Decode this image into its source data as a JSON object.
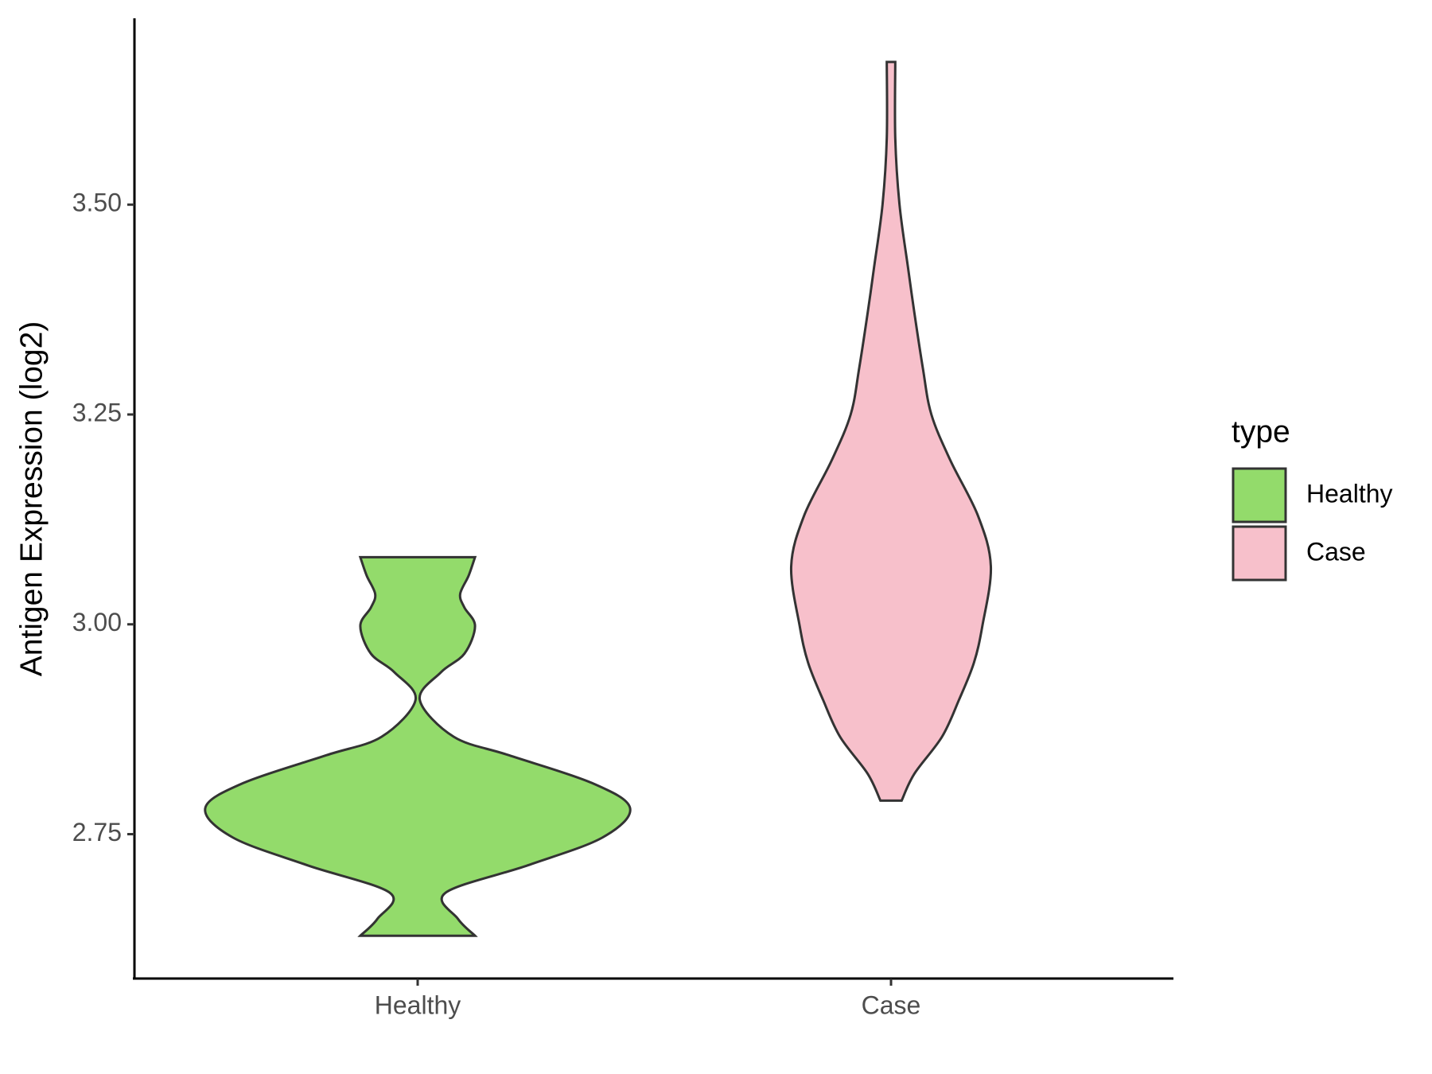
{
  "chart_data": {
    "type": "violin",
    "y_label": "Antigen Expression (log2)",
    "categories": [
      "Healthy",
      "Case"
    ],
    "ylim": [
      2.578,
      3.722
    ],
    "yticks": [
      2.75,
      {
        "value": 3.0,
        "label": "3.00"
      },
      3.25,
      {
        "value": 3.5,
        "label": "3.50"
      }
    ],
    "legend_title": "type",
    "legend_position": "right",
    "series": [
      {
        "name": "Healthy",
        "color": "#93db6b",
        "y": [
          2.629,
          2.649,
          2.68,
          2.713,
          2.746,
          2.781,
          2.811,
          2.844,
          2.866,
          2.91,
          2.943,
          2.965,
          2.998,
          3.02,
          3.036,
          3.058,
          3.08
        ],
        "density": [
          0.27,
          0.19,
          0.13,
          0.52,
          0.87,
          1.0,
          0.82,
          0.43,
          0.17,
          0.01,
          0.11,
          0.22,
          0.27,
          0.22,
          0.2,
          0.24,
          0.27
        ]
      },
      {
        "name": "Case",
        "color": "#f7c0cb",
        "y": [
          2.79,
          2.822,
          2.866,
          2.91,
          2.954,
          2.998,
          3.069,
          3.129,
          3.195,
          3.25,
          3.305,
          3.371,
          3.425,
          3.5,
          3.579,
          3.67
        ],
        "density": [
          0.05,
          0.11,
          0.24,
          0.32,
          0.39,
          0.43,
          0.47,
          0.41,
          0.28,
          0.19,
          0.15,
          0.11,
          0.08,
          0.04,
          0.02,
          0.02
        ]
      }
    ]
  }
}
